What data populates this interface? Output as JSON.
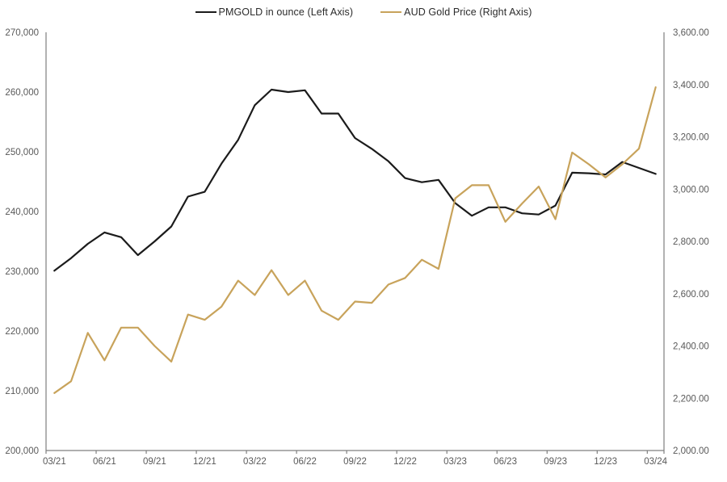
{
  "legend": {
    "items": [
      {
        "label": "PMGOLD in ounce (Left Axis)",
        "color": "#1b1b1b"
      },
      {
        "label": "AUD Gold Price (Right Axis)",
        "color": "#c8a35b"
      }
    ]
  },
  "chart_data": {
    "type": "line",
    "title": "",
    "x": [
      "03/21",
      "04/21",
      "05/21",
      "06/21",
      "07/21",
      "08/21",
      "09/21",
      "10/21",
      "11/21",
      "12/21",
      "01/22",
      "02/22",
      "03/22",
      "04/22",
      "05/22",
      "06/22",
      "07/22",
      "08/22",
      "09/22",
      "10/22",
      "11/22",
      "12/22",
      "01/23",
      "02/23",
      "03/23",
      "04/23",
      "05/23",
      "06/23",
      "07/23",
      "08/23",
      "09/23",
      "10/23",
      "11/23",
      "12/23",
      "01/24",
      "02/24",
      "03/24"
    ],
    "series": [
      {
        "name": "PMGOLD in ounce (Left Axis)",
        "axis": "left",
        "color": "#1b1b1b",
        "stroke_width": 2.2,
        "values": [
          230100,
          232200,
          234600,
          236500,
          235700,
          232700,
          235000,
          237500,
          242500,
          243300,
          248000,
          252000,
          257800,
          260400,
          260000,
          260300,
          256400,
          256400,
          252300,
          250500,
          248400,
          245600,
          244900,
          245300,
          241400,
          239300,
          240700,
          240700,
          239700,
          239500,
          241000,
          246500,
          246400,
          246200,
          248300,
          247300,
          246300
        ]
      },
      {
        "name": "AUD Gold Price (Right Axis)",
        "axis": "right",
        "color": "#c8a35b",
        "stroke_width": 2.2,
        "values": [
          2220,
          2265,
          2450,
          2345,
          2470,
          2470,
          2400,
          2340,
          2520,
          2500,
          2550,
          2650,
          2595,
          2690,
          2595,
          2650,
          2535,
          2500,
          2570,
          2565,
          2635,
          2660,
          2730,
          2695,
          2965,
          3015,
          3015,
          2875,
          2945,
          3010,
          2885,
          3140,
          3095,
          3045,
          3095,
          3155,
          3390
        ]
      }
    ],
    "left_axis": {
      "min": 200000,
      "max": 270000,
      "tick_step": 10000,
      "tick_labels": [
        "270,000",
        "260,000",
        "250,000",
        "240,000",
        "230,000",
        "220,000",
        "210,000",
        "200,000"
      ]
    },
    "right_axis": {
      "min": 2000,
      "max": 3600,
      "tick_step": 200,
      "tick_labels": [
        "3,600.00",
        "3,400.00",
        "3,200.00",
        "3,000.00",
        "2,800.00",
        "2,600.00",
        "2,400.00",
        "2,200.00",
        "2,000.00"
      ]
    },
    "x_tick_labels": [
      "03/21",
      "06/21",
      "09/21",
      "12/21",
      "03/22",
      "06/22",
      "09/22",
      "12/22",
      "03/23",
      "06/23",
      "09/23",
      "12/23",
      "03/24"
    ],
    "x_tick_every_n_points": 3,
    "grid": false,
    "legend_position": "top",
    "axis_line_color": "#7f7f7f",
    "tick_label_color": "#595959"
  }
}
